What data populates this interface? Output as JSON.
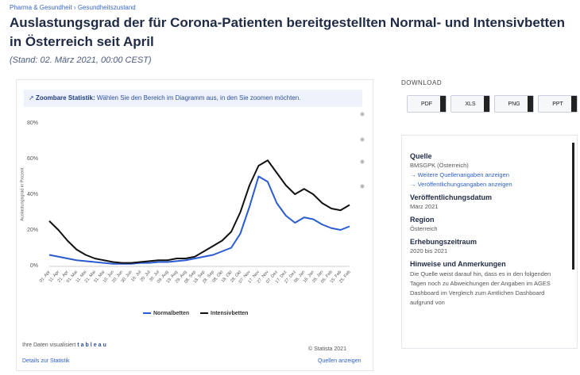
{
  "breadcrumb": "Pharma & Gesundheit › Gesundheitszustand",
  "zoom_hint": {
    "label": "Zoombare Statistik:",
    "text": "Wählen Sie den Bereich im Diagramm aus, in den Sie zoomen möchten."
  },
  "chart_data": {
    "type": "line",
    "title": "Auslastungsgrad der für Corona-Patienten bereitgestellten Normal- und Intensivbetten in Österreich seit April",
    "subtitle": "(Stand: 02. März 2021, 00:00 CEST)",
    "y_label": "Auslastungsgrad in Prozent",
    "categories": [
      "01. Apr",
      "11. Apr",
      "21. Apr",
      "01. Mai",
      "11. Mai",
      "21. Mai",
      "31. Mai",
      "10. Jun",
      "20. Jun",
      "30. Jun",
      "10. Jul",
      "20. Jul",
      "30. Jul",
      "09. Aug",
      "19. Aug",
      "29. Aug",
      "08. Sep",
      "18. Sep",
      "28. Sep",
      "08. Okt",
      "18. Okt",
      "28. Okt",
      "07. Nov",
      "17. Nov",
      "27. Nov",
      "07. Dez",
      "17. Dez",
      "27. Dez",
      "06. Jan",
      "16. Jan",
      "26. Jan",
      "05. Feb",
      "15. Feb",
      "25. Feb"
    ],
    "series": [
      {
        "name": "Normalbetten",
        "color": "#2b5bd0",
        "values": [
          6,
          5,
          4,
          3,
          2.5,
          2,
          1.5,
          1,
          1,
          1,
          1.5,
          1.5,
          2,
          2,
          2.5,
          3,
          4,
          5,
          6,
          8,
          10,
          18,
          33,
          50,
          47,
          35,
          28,
          24,
          27,
          26,
          23,
          21,
          20,
          22
        ]
      },
      {
        "name": "Intensivbetten",
        "color": "#111111",
        "values": [
          25,
          20,
          14,
          9,
          6,
          4,
          3,
          2,
          1.5,
          1.5,
          2,
          2.5,
          3,
          3,
          4,
          4,
          5,
          8,
          11,
          14,
          19,
          30,
          45,
          56,
          59,
          52,
          45,
          40,
          43,
          40,
          35,
          32,
          31,
          34
        ]
      }
    ],
    "ylim": [
      0,
      80
    ],
    "yticks": [
      {
        "value": 0,
        "label": "0%"
      },
      {
        "value": 20,
        "label": "20%"
      },
      {
        "value": 40,
        "label": "40%"
      },
      {
        "value": 60,
        "label": "60%"
      },
      {
        "value": 80,
        "label": "80%"
      }
    ],
    "grid": false,
    "legend": "bottom"
  },
  "footer": {
    "credit": "Ihre Daten visualisiert",
    "brand": "tableau",
    "copyright": "© Statista 2021",
    "details": "Details zur Statistik",
    "sources": "Quellen anzeigen"
  },
  "sidebar": {
    "download": "DOWNLOAD",
    "buttons": [
      "PDF",
      "XLS",
      "PNG",
      "PPT"
    ],
    "source_heading": "Quelle",
    "source": "BMSGPK (Österreich)",
    "links": [
      "→ Weitere Quellenangaben anzeigen",
      "→ Veröffentlichungsangaben anzeigen"
    ],
    "published_heading": "Veröffentlichungsdatum",
    "published": "März 2021",
    "region_heading": "Region",
    "region": "Österreich",
    "period_heading": "Erhebungszeitraum",
    "period": "2020 bis 2021",
    "notes_heading": "Hinweise und Anmerkungen",
    "notes": "Die Quelle weist darauf hin, dass es in den folgenden Tagen noch zu Abweichungen der Angaben im AGES Dashboard im Vergleich zum Amtlichen Dashboard aufgrund von"
  }
}
